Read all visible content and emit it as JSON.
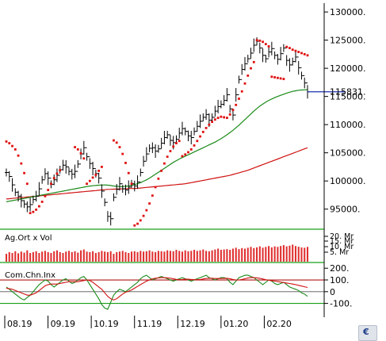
{
  "chart_data": [
    {
      "type": "line",
      "title": "",
      "y_ticks": [
        95000,
        100000,
        105000,
        110000,
        115000,
        120000,
        125000,
        130000
      ],
      "y_tick_labels": [
        "95000.",
        "100000.",
        "105000.",
        "110000.",
        "115000.",
        "120000.",
        "125000.",
        "130000."
      ],
      "ylim": [
        92000,
        131000
      ],
      "last_value_label": "115831.",
      "last_value": 115831,
      "x_tick_labels": [
        "08.19",
        "09.19",
        "10.19",
        "11.19",
        "12.19",
        "01.20",
        "02.20"
      ],
      "series": [
        {
          "role": "price",
          "color": "#000000",
          "values": [
            101500,
            100800,
            99300,
            98000,
            97300,
            96500,
            95900,
            95400,
            95800,
            96700,
            97300,
            98600,
            100200,
            101300,
            100500,
            99400,
            100200,
            101000,
            102000,
            102800,
            102500,
            101700,
            101200,
            101700,
            103000,
            104800,
            105900,
            104300,
            103100,
            102200,
            101300,
            100500,
            98200,
            96200,
            93700,
            93300,
            97100,
            98500,
            99500,
            98600,
            98400,
            98900,
            99500,
            99100,
            99800,
            101500,
            103500,
            104800,
            105800,
            105900,
            105300,
            105700,
            106700,
            107700,
            108200,
            107200,
            106800,
            107400,
            108500,
            109300,
            108800,
            108000,
            107700,
            108800,
            109700,
            110600,
            111300,
            111800,
            110800,
            111300,
            112400,
            113200,
            113600,
            114300,
            115300,
            112800,
            111700,
            115300,
            118000,
            119800,
            120800,
            121700,
            122700,
            124100,
            124800,
            123600,
            122300,
            121700,
            122900,
            123500,
            122300,
            121600,
            122600,
            123600,
            121400,
            120600,
            121200,
            122000,
            120100,
            118700,
            117400,
            115831
          ]
        },
        {
          "role": "parabolic-sar-upper",
          "color": "#e01010",
          "values": [
            107000,
            106700,
            106200,
            105600,
            104500,
            103100,
            101400,
            99500,
            null,
            null,
            null,
            null,
            null,
            null,
            null,
            null,
            null,
            null,
            null,
            null,
            null,
            null,
            null,
            106000,
            105600,
            104900,
            104000,
            null,
            null,
            null,
            null,
            null,
            null,
            null,
            null,
            null,
            107200,
            106800,
            106000,
            104800,
            103200,
            101400,
            99500,
            null,
            null,
            null,
            null,
            null,
            null,
            null,
            null,
            null,
            null,
            null,
            null,
            null,
            null,
            null,
            null,
            null,
            null,
            null,
            null,
            null,
            null,
            null,
            null,
            null,
            null,
            null,
            null,
            null,
            null,
            null,
            null,
            null,
            null,
            null,
            null,
            null,
            null,
            null,
            null,
            null,
            125000,
            124900,
            124700,
            124300,
            123900,
            null,
            null,
            null,
            null,
            null,
            123800,
            123600,
            123300,
            123100,
            122900,
            122700,
            122500,
            122300
          ]
        },
        {
          "role": "parabolic-sar-lower",
          "color": "#e01010",
          "values": [
            null,
            null,
            null,
            null,
            null,
            null,
            null,
            null,
            94300,
            94500,
            94900,
            95500,
            96300,
            97300,
            98400,
            99500,
            100500,
            101300,
            101900,
            null,
            null,
            null,
            null,
            null,
            null,
            null,
            null,
            99500,
            100000,
            100600,
            101100,
            101800,
            102500,
            null,
            null,
            null,
            null,
            null,
            null,
            null,
            null,
            null,
            null,
            92100,
            92400,
            93000,
            93800,
            94800,
            96000,
            97400,
            98900,
            100400,
            101800,
            103100,
            104300,
            105300,
            106100,
            106700,
            107100,
            104400,
            104700,
            105100,
            105600,
            106300,
            107100,
            107900,
            108700,
            109400,
            110000,
            110500,
            110900,
            111200,
            111400,
            111300,
            111200,
            111800,
            112600,
            113500,
            114600,
            115900,
            117300,
            118700,
            120000,
            121100,
            null,
            null,
            null,
            null,
            null,
            118500,
            118400,
            118300,
            118200,
            118100,
            null,
            null,
            null,
            null,
            null,
            null,
            null,
            null
          ]
        },
        {
          "role": "moving-average-short",
          "color": "#1a8a1a",
          "values": [
            96300,
            96400,
            96500,
            96600,
            96700,
            96800,
            96900,
            97000,
            97100,
            97200,
            97300,
            97400,
            97500,
            97600,
            97700,
            97800,
            97900,
            98000,
            98100,
            98200,
            98300,
            98400,
            98500,
            98600,
            98700,
            98800,
            98900,
            99000,
            99100,
            99150,
            99200,
            99250,
            99280,
            99300,
            99250,
            99200,
            99100,
            99050,
            99000,
            99000,
            99050,
            99100,
            99200,
            99350,
            99500,
            99700,
            99950,
            100200,
            100500,
            100850,
            101200,
            101550,
            101900,
            102250,
            102600,
            102950,
            103300,
            103600,
            103900,
            104150,
            104400,
            104650,
            104900,
            105150,
            105400,
            105650,
            105900,
            106150,
            106400,
            106650,
            106900,
            107200,
            107500,
            107850,
            108200,
            108600,
            109000,
            109450,
            109900,
            110400,
            110900,
            111400,
            111900,
            112400,
            112850,
            113300,
            113650,
            114000,
            114300,
            114550,
            114800,
            115000,
            115200,
            115400,
            115600,
            115750,
            115900,
            116000,
            116100,
            116150,
            116180,
            116200
          ]
        },
        {
          "role": "moving-average-long",
          "color": "#d01010",
          "values": [
            96800,
            96850,
            96900,
            96950,
            97000,
            97050,
            97100,
            97150,
            97200,
            97250,
            97300,
            97350,
            97400,
            97450,
            97500,
            97550,
            97600,
            97650,
            97700,
            97750,
            97800,
            97850,
            97900,
            97950,
            98000,
            98050,
            98100,
            98150,
            98200,
            98250,
            98300,
            98350,
            98400,
            98450,
            98500,
            98520,
            98540,
            98560,
            98580,
            98600,
            98620,
            98640,
            98660,
            98680,
            98700,
            98750,
            98800,
            98850,
            98900,
            98950,
            99000,
            99050,
            99100,
            99150,
            99200,
            99250,
            99300,
            99350,
            99400,
            99450,
            99500,
            99600,
            99700,
            99800,
            99900,
            100000,
            100100,
            100200,
            100300,
            100400,
            100500,
            100600,
            100700,
            100800,
            100900,
            101000,
            101150,
            101300,
            101450,
            101600,
            101750,
            101900,
            102100,
            102300,
            102500,
            102700,
            102900,
            103100,
            103300,
            103500,
            103700,
            103900,
            104100,
            104300,
            104500,
            104700,
            104900,
            105100,
            105300,
            105500,
            105700,
            105900
          ]
        }
      ]
    },
    {
      "type": "bar",
      "title": "Ag.Ort x Vol",
      "y_tick_labels": [
        "20. Mr",
        "15. Mr",
        "10. Mr",
        "5. Mr"
      ],
      "bar_color": "#e03030",
      "values": [
        0.45,
        0.55,
        0.5,
        0.6,
        0.48,
        0.58,
        0.52,
        0.65,
        0.5,
        0.55,
        0.6,
        0.5,
        0.58,
        0.62,
        0.55,
        0.5,
        0.6,
        0.65,
        0.55,
        0.5,
        0.58,
        0.62,
        0.55,
        0.6,
        0.52,
        0.65,
        0.7,
        0.58,
        0.55,
        0.6,
        0.5,
        0.55,
        0.62,
        0.58,
        0.55,
        0.6,
        0.45,
        0.55,
        0.58,
        0.62,
        0.55,
        0.5,
        0.58,
        0.6,
        0.55,
        0.62,
        0.58,
        0.6,
        0.65,
        0.58,
        0.55,
        0.62,
        0.6,
        0.58,
        0.65,
        0.62,
        0.6,
        0.68,
        0.62,
        0.58,
        0.65,
        0.6,
        0.62,
        0.68,
        0.62,
        0.65,
        0.7,
        0.62,
        0.6,
        0.65,
        0.7,
        0.75,
        0.68,
        0.7,
        0.72,
        0.68,
        0.75,
        0.8,
        0.72,
        0.78,
        0.75,
        0.8,
        0.85,
        0.78,
        0.82,
        0.88,
        0.8,
        0.85,
        0.9,
        0.82,
        0.88,
        0.85,
        0.9,
        0.95,
        0.88,
        0.92,
        0.98,
        0.9,
        0.86,
        0.82,
        0.8,
        0.85
      ]
    },
    {
      "type": "line",
      "title": "Com.Chn.Inx",
      "y_ticks": [
        200,
        100,
        0,
        -100
      ],
      "y_tick_labels": [
        "200.",
        "100.",
        "0",
        "-100."
      ],
      "ylim": [
        -150,
        215
      ],
      "reference_lines": [
        100,
        0,
        -100
      ],
      "series": [
        {
          "role": "cci",
          "color": "#1a8a1a",
          "values": [
            40,
            20,
            0,
            -20,
            -40,
            -60,
            -70,
            -50,
            -30,
            0,
            30,
            60,
            80,
            100,
            90,
            60,
            40,
            60,
            80,
            100,
            110,
            90,
            70,
            80,
            100,
            120,
            130,
            100,
            60,
            20,
            -20,
            -60,
            -110,
            -140,
            -150,
            -90,
            -30,
            0,
            20,
            10,
            0,
            20,
            40,
            60,
            80,
            110,
            130,
            140,
            120,
            100,
            110,
            120,
            130,
            120,
            110,
            100,
            90,
            100,
            110,
            120,
            110,
            100,
            90,
            100,
            110,
            120,
            130,
            140,
            120,
            110,
            100,
            110,
            120,
            120,
            110,
            80,
            60,
            90,
            120,
            130,
            140,
            140,
            130,
            120,
            100,
            80,
            60,
            80,
            100,
            90,
            70,
            60,
            70,
            80,
            60,
            40,
            30,
            20,
            10,
            -10,
            -20,
            -40
          ]
        },
        {
          "role": "cci-average",
          "color": "#d01010",
          "values": [
            30,
            25,
            20,
            10,
            0,
            -10,
            -20,
            -30,
            -30,
            -20,
            -10,
            10,
            30,
            50,
            60,
            65,
            65,
            65,
            70,
            75,
            80,
            85,
            85,
            85,
            85,
            90,
            95,
            100,
            95,
            80,
            60,
            40,
            20,
            -10,
            -40,
            -60,
            -70,
            -60,
            -40,
            -20,
            -5,
            5,
            15,
            30,
            45,
            60,
            75,
            90,
            100,
            110,
            115,
            118,
            120,
            120,
            118,
            115,
            110,
            105,
            102,
            104,
            106,
            106,
            104,
            102,
            102,
            104,
            108,
            112,
            114,
            114,
            112,
            112,
            112,
            113,
            114,
            110,
            104,
            100,
            100,
            104,
            110,
            116,
            120,
            120,
            118,
            114,
            108,
            102,
            98,
            94,
            90,
            86,
            82,
            78,
            74,
            70,
            65,
            60,
            54,
            48,
            42,
            36
          ]
        }
      ]
    }
  ],
  "corner_icon": "chart-widget-icon"
}
